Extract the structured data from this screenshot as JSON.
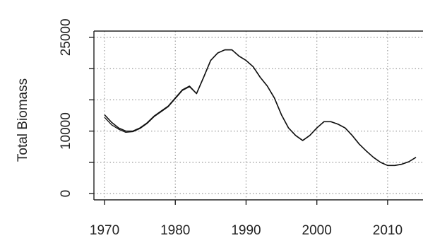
{
  "chart_data": {
    "type": "line",
    "title": "",
    "xlabel": "",
    "ylabel": "Total Biomass",
    "xlim": [
      1968.5,
      2015
    ],
    "ylim": [
      -1000,
      26000
    ],
    "grid": true,
    "legend": "none",
    "x_ticks": [
      1970,
      1980,
      1990,
      2000,
      2010
    ],
    "x_tick_labels": [
      "1970",
      "1980",
      "1990",
      "2000",
      "2010"
    ],
    "y_ticks": [
      0,
      5000,
      10000,
      15000,
      20000,
      25000
    ],
    "y_tick_labels": [
      "0",
      "",
      "10000",
      "",
      "",
      "25000"
    ],
    "colors": {
      "line": "#111111",
      "axis": "#222222",
      "grid": "#9a9a9a"
    },
    "series": [
      {
        "x": [
          1970,
          1971,
          1972,
          1973,
          1974,
          1975,
          1976,
          1977,
          1978,
          1979,
          1980,
          1981,
          1982,
          1983,
          1984,
          1985,
          1986,
          1987,
          1988,
          1989,
          1990,
          1991,
          1992,
          1993,
          1994,
          1995,
          1996,
          1997,
          1998,
          1999,
          2000,
          2001,
          2002,
          2003,
          2004,
          2005,
          2006,
          2007,
          2008,
          2009,
          2010,
          2011,
          2012,
          2013,
          2014
        ],
        "values": [
          12600,
          11400,
          10500,
          10000,
          10000,
          10500,
          11300,
          12400,
          13200,
          14000,
          15300,
          16600,
          17200,
          16000,
          18600,
          21300,
          22500,
          23000,
          23000,
          22000,
          21300,
          20300,
          18600,
          17200,
          15300,
          12600,
          10500,
          9300,
          8500,
          9300,
          10500,
          11500,
          11500,
          11100,
          10500,
          9300,
          7900,
          6800,
          5800,
          5000,
          4500,
          4500,
          4700,
          5100,
          5800
        ]
      },
      {
        "x": [
          1970,
          1971,
          1972,
          1973,
          1974,
          1975,
          1976,
          1977,
          1978,
          1979,
          1980,
          1981,
          1982,
          1983,
          1984,
          1985,
          1986,
          1987,
          1988,
          1989,
          1990,
          1991,
          1992,
          1993,
          1994,
          1995,
          1996,
          1997,
          1998,
          1999,
          2000,
          2001,
          2002,
          2003,
          2004,
          2005,
          2006,
          2007,
          2008,
          2009,
          2010,
          2011,
          2012,
          2013,
          2014
        ],
        "values": [
          12200,
          11000,
          10300,
          9800,
          9900,
          10400,
          11200,
          12300,
          13100,
          13900,
          15200,
          16500,
          17100,
          16000,
          18600,
          21300,
          22500,
          23000,
          23000,
          22000,
          21300,
          20300,
          18600,
          17200,
          15300,
          12600,
          10500,
          9300,
          8500,
          9300,
          10500,
          11500,
          11500,
          11100,
          10500,
          9300,
          7900,
          6800,
          5800,
          5000,
          4500,
          4500,
          4700,
          5100,
          5800
        ]
      }
    ]
  }
}
